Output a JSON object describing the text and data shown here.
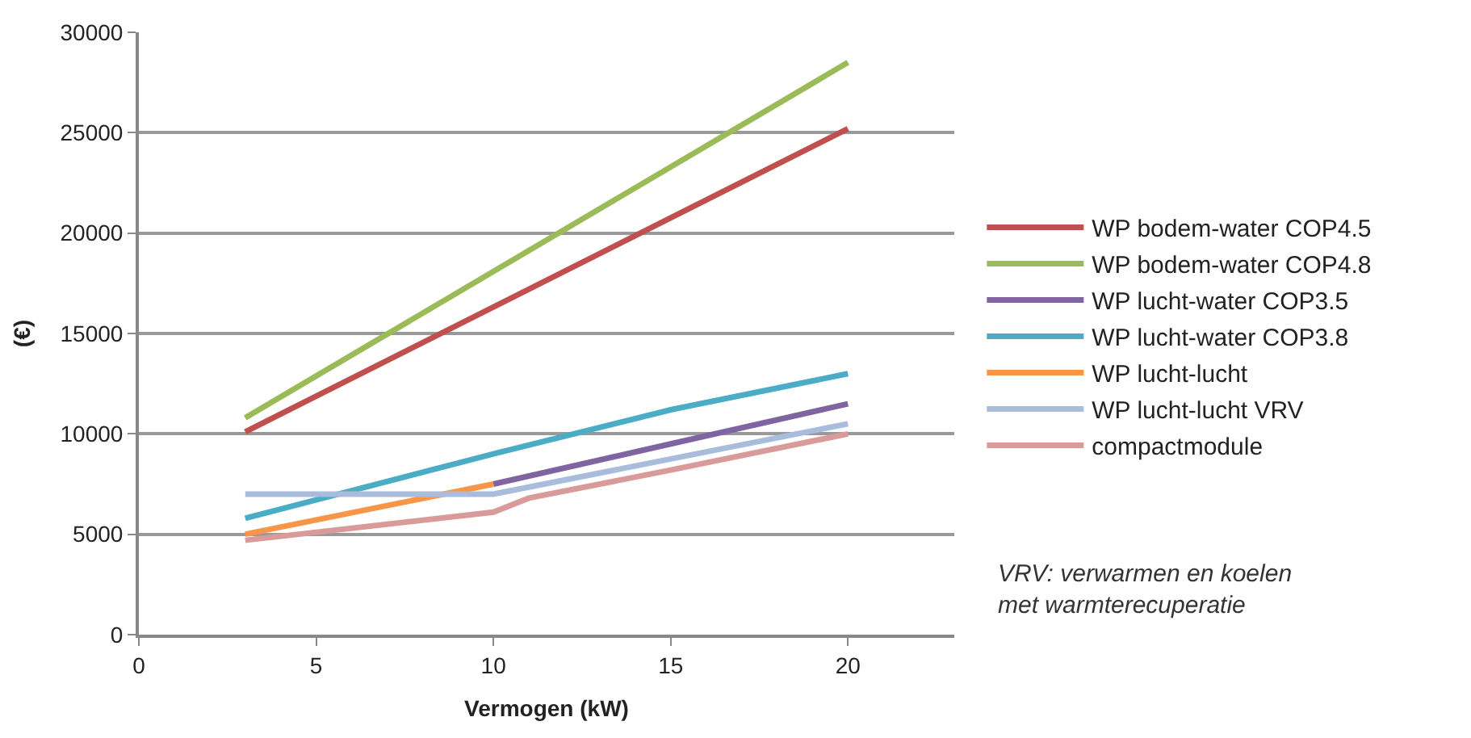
{
  "chart_data": {
    "type": "line",
    "xlabel": "Vermogen (kW)",
    "ylabel": "(€)",
    "xlim": [
      0,
      23
    ],
    "xticks": [
      0,
      5,
      10,
      15,
      20
    ],
    "ylim": [
      0,
      30000
    ],
    "yticks": [
      0,
      5000,
      10000,
      15000,
      20000,
      25000,
      30000
    ],
    "grid": "y",
    "legend": "right",
    "marker": "none",
    "line_style": "solid",
    "annotations": [
      "VRV: verwarmen en koelen met warmterecuperatie"
    ],
    "series": [
      {
        "name": "WP bodem-water COP4.5",
        "color": "#c0504d",
        "x": [
          3,
          20
        ],
        "values": [
          10100,
          25200
        ]
      },
      {
        "name": "WP bodem-water COP4.8",
        "color": "#9bbb59",
        "x": [
          3,
          20
        ],
        "values": [
          10800,
          28500
        ]
      },
      {
        "name": "WP lucht-water COP3.5",
        "color": "#8064a2",
        "x": [
          10,
          15,
          20
        ],
        "values": [
          7500,
          9500,
          11500
        ]
      },
      {
        "name": "WP lucht-water COP3.8",
        "color": "#4bacc6",
        "x": [
          3,
          10,
          15,
          20
        ],
        "values": [
          5800,
          9000,
          11200,
          13000
        ]
      },
      {
        "name": "WP lucht-lucht",
        "color": "#f79646",
        "x": [
          3,
          10
        ],
        "values": [
          5000,
          7500
        ]
      },
      {
        "name": "WP lucht-lucht VRV",
        "color": "#a9bcdc",
        "x": [
          3,
          10,
          20
        ],
        "values": [
          7000,
          7000,
          10500
        ]
      },
      {
        "name": "compactmodule",
        "color": "#d99a9a",
        "x": [
          3,
          10,
          11,
          15,
          20
        ],
        "values": [
          4700,
          6100,
          6800,
          8200,
          10000
        ]
      }
    ]
  }
}
